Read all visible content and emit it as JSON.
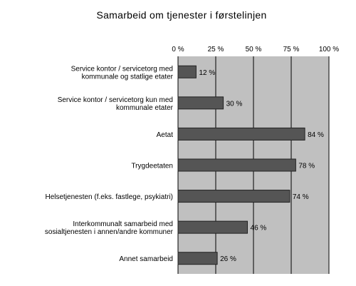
{
  "chart_data": {
    "type": "bar",
    "orientation": "horizontal",
    "title": "Samarbeid om tjenester i førstelinjen",
    "xlabel": "",
    "ylabel": "",
    "xlim": [
      0,
      100
    ],
    "ticks": [
      0,
      25,
      50,
      75,
      100
    ],
    "tick_labels": [
      "0 %",
      "25 %",
      "50 %",
      "75 %",
      "100 %"
    ],
    "tick_position": "top",
    "grid": true,
    "legend": "none",
    "categories": [
      [
        "Service kontor / servicetorg med",
        "kommunale og statlige etater"
      ],
      [
        "Service kontor / servicetorg kun med",
        "kommunale etater"
      ],
      [
        "Aetat"
      ],
      [
        "Trygdeetaten"
      ],
      [
        "Helsetjenesten (f.eks. fastlege, psykiatri)"
      ],
      [
        "Interkommunalt samarbeid med",
        "sosialtjenesten i annen/andre kommuner"
      ],
      [
        "Annet samarbeid"
      ]
    ],
    "values": [
      12,
      30,
      84,
      78,
      74,
      46,
      26
    ],
    "value_labels": [
      "12 %",
      "30 %",
      "84 %",
      "78 %",
      "74 %",
      "46 %",
      "26 %"
    ],
    "colors": {
      "plot_background": "#c0c0c0",
      "bar_fill": "#555555",
      "bar_stroke": "#222222",
      "gridline": "#000000"
    }
  }
}
